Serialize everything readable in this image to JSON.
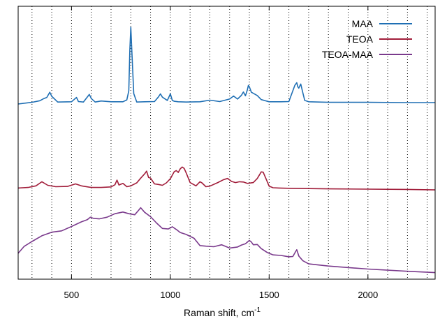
{
  "chart_data": {
    "type": "line",
    "title": "",
    "xlabel": "Raman shift, cm",
    "xlabel_superscript": "-1",
    "ylabel": "",
    "xlim": [
      230,
      2340
    ],
    "ylim": [
      0,
      100
    ],
    "xticks": [
      500,
      1000,
      1500,
      2000
    ],
    "xtick_labels": [
      "500",
      "1000",
      "1500",
      "2000"
    ],
    "minor_gridlines_every": 100,
    "grid": "vertical dotted lines",
    "y_tick_labels": "none",
    "legend_position": "top-right",
    "series": [
      {
        "name": "MAA",
        "color": "#1f6fb4",
        "x": [
          230,
          300,
          340,
          360,
          375,
          390,
          400,
          430,
          500,
          525,
          535,
          560,
          590,
          600,
          620,
          650,
          700,
          760,
          780,
          790,
          795,
          800,
          805,
          815,
          830,
          870,
          920,
          940,
          950,
          960,
          985,
          1000,
          1010,
          1020,
          1040,
          1080,
          1150,
          1200,
          1250,
          1300,
          1320,
          1340,
          1360,
          1370,
          1380,
          1390,
          1395,
          1400,
          1410,
          1420,
          1440,
          1460,
          1500,
          1560,
          1600,
          1630,
          1640,
          1645,
          1650,
          1655,
          1660,
          1670,
          1680,
          1700,
          1750,
          1800,
          2000,
          2200,
          2340
        ],
        "y": [
          64.2,
          64.8,
          65.4,
          66.2,
          66.6,
          68.5,
          67.0,
          64.9,
          65.0,
          66.6,
          65.1,
          64.9,
          67.7,
          66.2,
          64.9,
          65.3,
          65.0,
          65.0,
          65.7,
          69.0,
          84.0,
          92.3,
          84.0,
          68.0,
          64.9,
          65.0,
          65.1,
          66.8,
          67.9,
          66.7,
          65.5,
          67.9,
          65.5,
          65.2,
          65.0,
          64.9,
          65.0,
          65.6,
          65.1,
          66.0,
          67.1,
          66.0,
          67.4,
          68.6,
          67.2,
          69.4,
          71.0,
          70.5,
          68.5,
          68.1,
          67.3,
          65.8,
          65.0,
          65.0,
          65.1,
          71.0,
          72.0,
          70.5,
          70.0,
          70.8,
          71.5,
          68.5,
          65.5,
          65.0,
          64.9,
          64.8,
          64.8,
          64.7,
          64.7
        ]
      },
      {
        "name": "TEOA",
        "color": "#a11d3a",
        "x": [
          230,
          280,
          320,
          350,
          380,
          420,
          480,
          520,
          550,
          600,
          650,
          700,
          720,
          730,
          740,
          760,
          780,
          800,
          830,
          850,
          870,
          880,
          890,
          900,
          920,
          940,
          960,
          980,
          1000,
          1020,
          1030,
          1040,
          1050,
          1060,
          1070,
          1080,
          1100,
          1130,
          1150,
          1160,
          1180,
          1200,
          1240,
          1270,
          1290,
          1310,
          1330,
          1350,
          1370,
          1390,
          1420,
          1440,
          1460,
          1470,
          1480,
          1500,
          1520,
          1550,
          1600,
          1700,
          1800,
          2000,
          2200,
          2340
        ],
        "y": [
          33.4,
          33.6,
          34.2,
          35.7,
          34.4,
          33.9,
          34.0,
          34.9,
          34.2,
          33.6,
          33.6,
          33.8,
          34.6,
          36.3,
          34.5,
          35.1,
          33.9,
          34.2,
          35.3,
          37.0,
          38.6,
          39.6,
          37.3,
          37.0,
          34.9,
          34.7,
          34.4,
          35.3,
          36.8,
          39.4,
          39.8,
          39.1,
          40.4,
          41.1,
          40.6,
          39.0,
          35.4,
          34.2,
          35.7,
          35.3,
          33.9,
          34.1,
          35.4,
          36.5,
          36.9,
          35.8,
          35.4,
          35.7,
          35.6,
          35.1,
          35.4,
          36.9,
          39.3,
          39.2,
          37.5,
          34.1,
          33.5,
          33.4,
          33.3,
          33.2,
          33.1,
          33.0,
          32.9,
          32.7
        ]
      },
      {
        "name": "TEOA-MAA",
        "color": "#7a3a8c",
        "x": [
          230,
          260,
          300,
          350,
          400,
          450,
          500,
          550,
          580,
          595,
          610,
          640,
          680,
          720,
          760,
          790,
          820,
          840,
          850,
          870,
          900,
          930,
          960,
          990,
          1010,
          1030,
          1050,
          1080,
          1120,
          1150,
          1180,
          1220,
          1260,
          1300,
          1340,
          1360,
          1380,
          1400,
          1410,
          1420,
          1440,
          1460,
          1490,
          1520,
          1560,
          1600,
          1620,
          1630,
          1640,
          1650,
          1670,
          1700,
          1800,
          2000,
          2200,
          2340
        ],
        "y": [
          9.5,
          12.0,
          13.8,
          15.9,
          17.2,
          17.7,
          19.3,
          21.0,
          21.8,
          22.7,
          22.3,
          22.1,
          22.7,
          24.0,
          24.6,
          24.0,
          23.6,
          25.3,
          26.2,
          24.5,
          22.9,
          20.6,
          18.6,
          18.4,
          19.2,
          18.2,
          17.1,
          16.4,
          15.0,
          12.3,
          12.1,
          11.9,
          12.6,
          11.4,
          11.8,
          12.5,
          13.0,
          14.2,
          13.6,
          12.6,
          12.7,
          11.2,
          9.8,
          8.9,
          8.7,
          8.2,
          8.3,
          9.6,
          10.8,
          8.5,
          6.8,
          5.6,
          4.8,
          3.7,
          2.9,
          2.4
        ]
      }
    ]
  }
}
